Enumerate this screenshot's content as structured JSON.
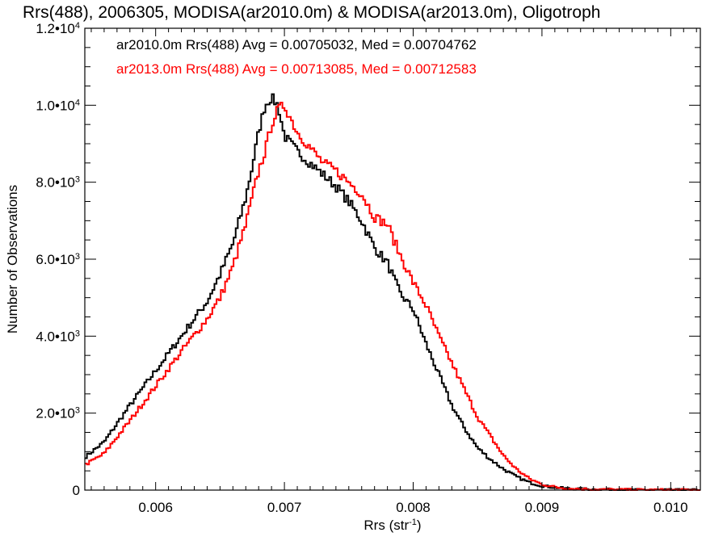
{
  "chart_data": {
    "type": "line",
    "title": "Rrs(488), 2006305, MODISA(ar2010.0m) & MODISA(ar2013.0m), Oligotroph",
    "xlabel_main": "Rrs (str",
    "xlabel_sup": "-1",
    "xlabel_tail": ")",
    "ylabel": "Number of Observations",
    "xlim": [
      0.00545,
      0.01023
    ],
    "ylim": [
      0,
      12000
    ],
    "x_ticks": [
      {
        "value": 0.006,
        "label": "0.006"
      },
      {
        "value": 0.007,
        "label": "0.007"
      },
      {
        "value": 0.008,
        "label": "0.008"
      },
      {
        "value": 0.009,
        "label": "0.009"
      },
      {
        "value": 0.01,
        "label": "0.010"
      }
    ],
    "y_ticks": [
      {
        "value": 0,
        "mantissa": "0",
        "exponent": ""
      },
      {
        "value": 2000,
        "mantissa": "2.0•10",
        "exponent": "3"
      },
      {
        "value": 4000,
        "mantissa": "4.0•10",
        "exponent": "3"
      },
      {
        "value": 6000,
        "mantissa": "6.0•10",
        "exponent": "3"
      },
      {
        "value": 8000,
        "mantissa": "8.0•10",
        "exponent": "3"
      },
      {
        "value": 10000,
        "mantissa": "1.0•10",
        "exponent": "4"
      },
      {
        "value": 12000,
        "mantissa": "1.2•10",
        "exponent": "4"
      }
    ],
    "grid": false,
    "legend_position": "top-left",
    "series": [
      {
        "name": "ar2010.0m Rrs(488) Avg = 0.00705032, Med = 0.00704762",
        "color": "#000000",
        "x": [
          0.00545,
          0.0056,
          0.0058,
          0.006,
          0.0062,
          0.0064,
          0.0065,
          0.0066,
          0.0067,
          0.00675,
          0.0068,
          0.00685,
          0.0069,
          0.00695,
          0.007,
          0.0071,
          0.0072,
          0.0073,
          0.0074,
          0.0075,
          0.0076,
          0.0077,
          0.0078,
          0.0079,
          0.008,
          0.0081,
          0.0082,
          0.0083,
          0.0084,
          0.0085,
          0.0086,
          0.0087,
          0.0088,
          0.0089,
          0.009,
          0.0091,
          0.0092,
          0.0094,
          0.0096,
          0.0098,
          0.01023
        ],
        "y": [
          850,
          1250,
          2200,
          3100,
          4000,
          4900,
          5600,
          6400,
          7600,
          8400,
          9300,
          10000,
          10200,
          10000,
          9200,
          8800,
          8500,
          8200,
          7900,
          7500,
          7000,
          6300,
          5900,
          5100,
          4700,
          3800,
          3000,
          2200,
          1600,
          1100,
          800,
          550,
          350,
          200,
          110,
          70,
          40,
          20,
          10,
          5,
          0
        ]
      },
      {
        "name": "ar2013.0m Rrs(488) Avg = 0.00713085, Med = 0.00712583",
        "color": "#ff0000",
        "x": [
          0.00545,
          0.0056,
          0.0058,
          0.006,
          0.0062,
          0.0064,
          0.0065,
          0.0066,
          0.0067,
          0.0068,
          0.00685,
          0.0069,
          0.00695,
          0.007,
          0.0071,
          0.0072,
          0.0073,
          0.0074,
          0.0075,
          0.0076,
          0.0077,
          0.0078,
          0.0079,
          0.008,
          0.0081,
          0.0082,
          0.0083,
          0.0084,
          0.0085,
          0.0086,
          0.0087,
          0.0088,
          0.0089,
          0.009,
          0.0091,
          0.0092,
          0.0094,
          0.0096,
          0.0098,
          0.01023
        ],
        "y": [
          650,
          950,
          1800,
          2700,
          3600,
          4450,
          5000,
          5800,
          6900,
          8300,
          8800,
          9500,
          9900,
          10000,
          9300,
          8900,
          8500,
          8300,
          8000,
          7700,
          7100,
          6900,
          6100,
          5400,
          4800,
          4000,
          3300,
          2600,
          1900,
          1400,
          900,
          550,
          300,
          150,
          80,
          40,
          20,
          10,
          5,
          0
        ]
      }
    ]
  }
}
